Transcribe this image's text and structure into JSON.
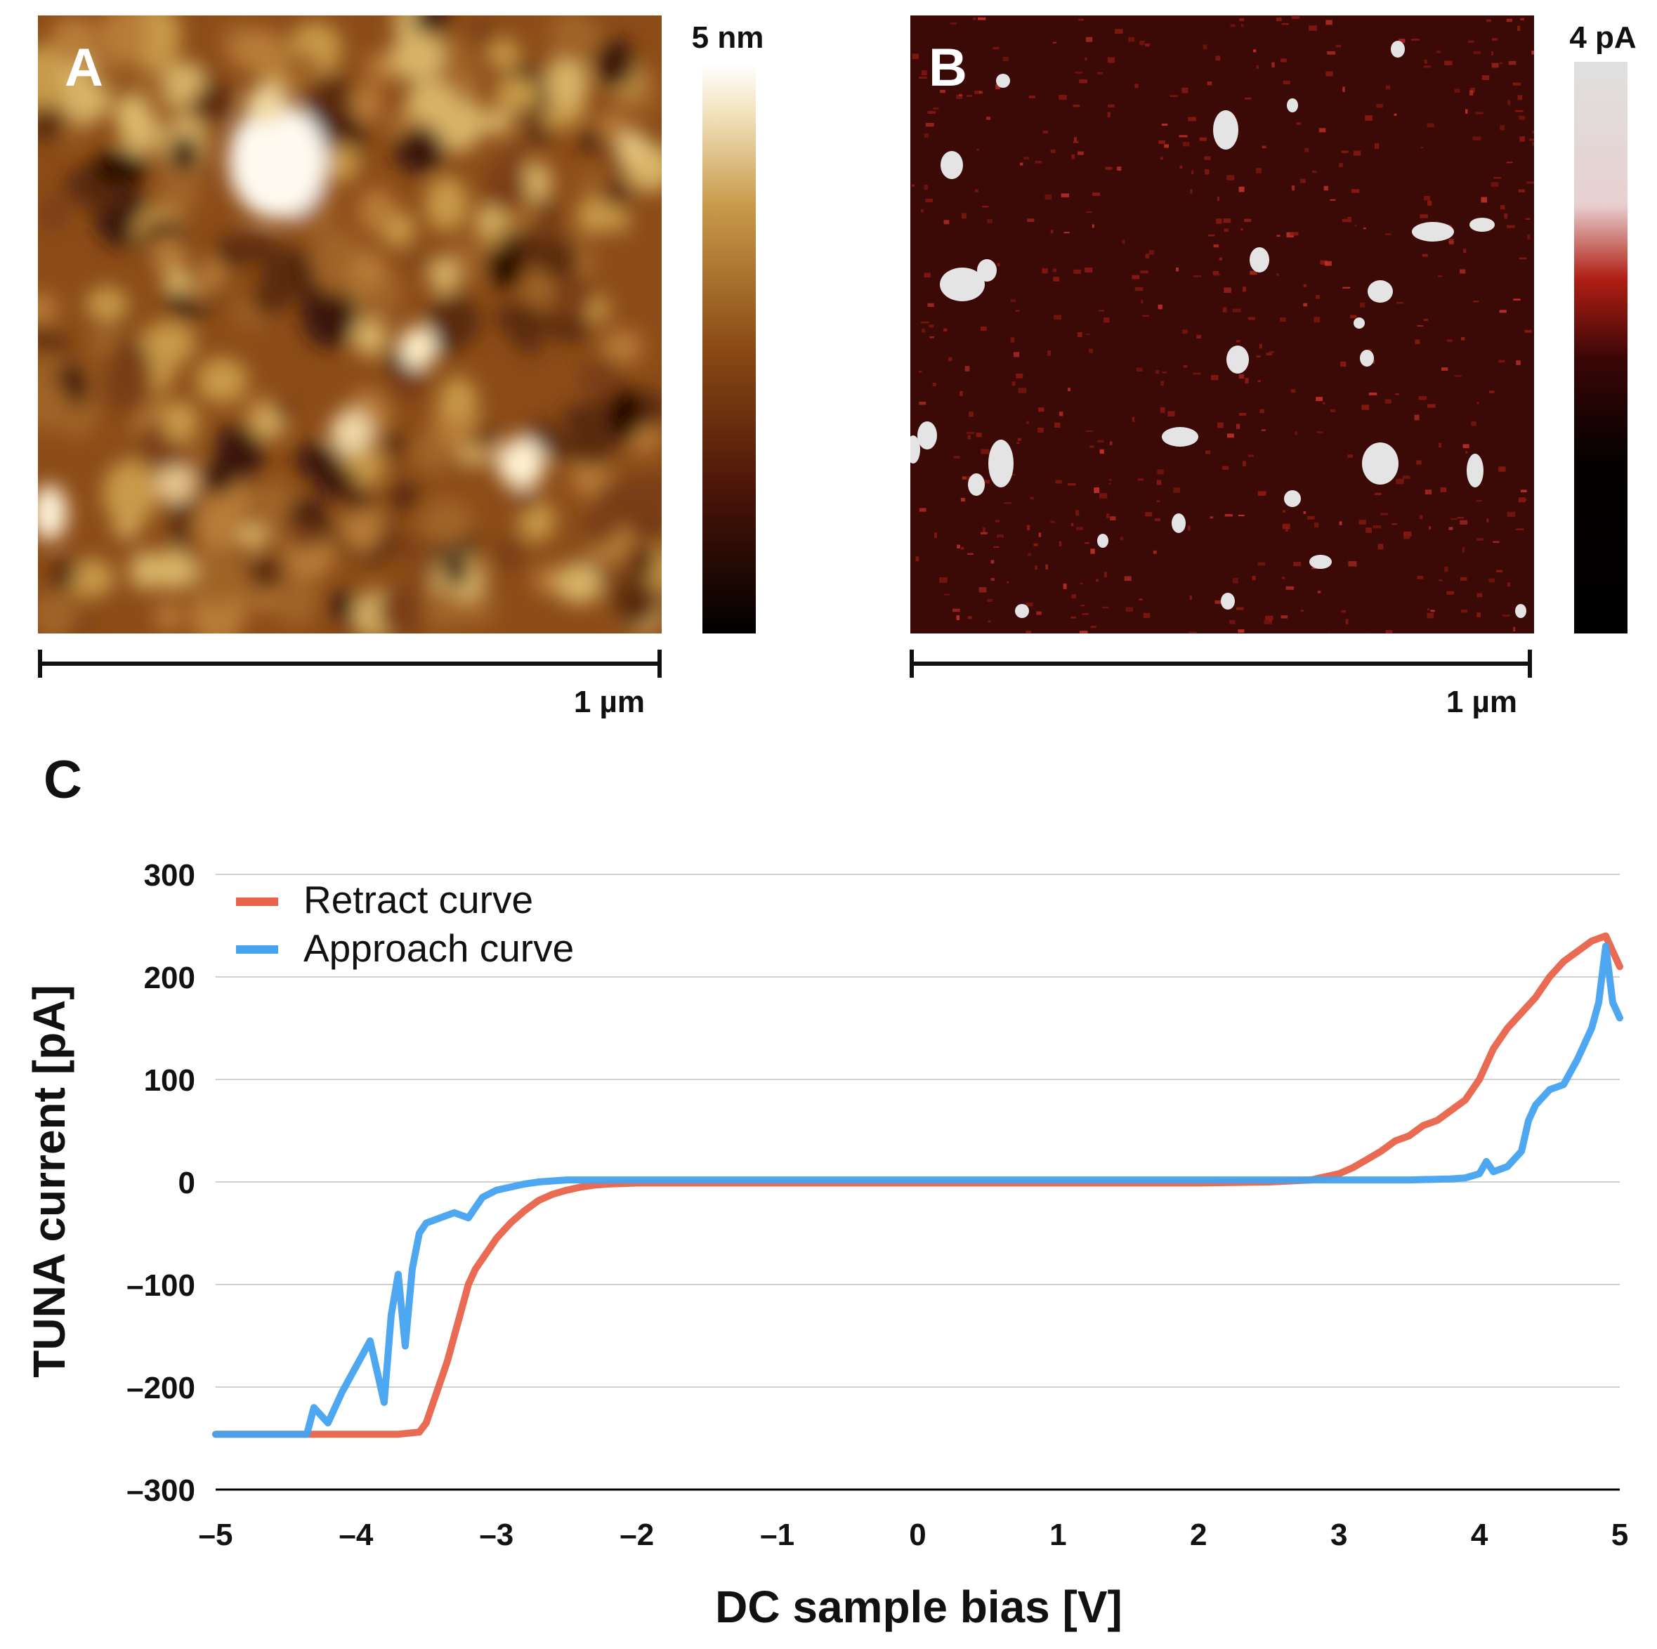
{
  "panel_a": {
    "letter": "A",
    "colorbar_label": "5 nm",
    "scalebar_label": "1 µm",
    "colormap": [
      "#000000",
      "#4a1408",
      "#8a4a14",
      "#c89a4a",
      "#f4e6c4",
      "#ffffff"
    ]
  },
  "panel_b": {
    "letter": "B",
    "colorbar_label": "4 pA",
    "scalebar_label": "1 µm",
    "colormap": [
      "#000000",
      "#2a0404",
      "#b01e14",
      "#e8d0d0",
      "#e0e0e0"
    ],
    "background": "#3b0a06"
  },
  "panel_c": {
    "letter": "C"
  },
  "chart_data": {
    "type": "line",
    "title": "",
    "xlabel": "DC sample bias [V]",
    "ylabel": "TUNA current [pA]",
    "xlim": [
      -5,
      5
    ],
    "ylim": [
      -300,
      300
    ],
    "x_ticks": [
      "–5",
      "–4",
      "–3",
      "–2",
      "–1",
      "0",
      "1",
      "2",
      "3",
      "4",
      "5"
    ],
    "y_ticks": [
      "300",
      "200",
      "100",
      "0",
      "–100",
      "–200",
      "–300"
    ],
    "grid": true,
    "legend_position": "top-left",
    "series": [
      {
        "name": "Retract curve",
        "color": "#e8634a",
        "x": [
          -5,
          -4.5,
          -4.0,
          -3.7,
          -3.55,
          -3.5,
          -3.45,
          -3.4,
          -3.35,
          -3.3,
          -3.25,
          -3.2,
          -3.15,
          -3.1,
          -3.0,
          -2.9,
          -2.8,
          -2.7,
          -2.6,
          -2.5,
          -2.4,
          -2.3,
          -2.2,
          -2.0,
          -1.5,
          -1.0,
          0,
          1.0,
          2.0,
          2.5,
          2.8,
          3.0,
          3.1,
          3.2,
          3.3,
          3.4,
          3.5,
          3.6,
          3.7,
          3.8,
          3.9,
          4.0,
          4.1,
          4.2,
          4.3,
          4.4,
          4.5,
          4.6,
          4.7,
          4.8,
          4.9,
          5.0
        ],
        "y": [
          -246,
          -246,
          -246,
          -246,
          -244,
          -235,
          -215,
          -195,
          -175,
          -150,
          -125,
          -100,
          -85,
          -75,
          -55,
          -40,
          -28,
          -18,
          -12,
          -8,
          -5,
          -3,
          -2,
          -1,
          -1,
          -1,
          -1,
          -1,
          -1,
          0,
          2,
          8,
          14,
          22,
          30,
          40,
          45,
          55,
          60,
          70,
          80,
          100,
          130,
          150,
          165,
          180,
          200,
          215,
          225,
          235,
          240,
          210
        ]
      },
      {
        "name": "Approach curve",
        "color": "#45a3f0",
        "x": [
          -5,
          -4.6,
          -4.35,
          -4.3,
          -4.2,
          -4.1,
          -4.0,
          -3.9,
          -3.8,
          -3.75,
          -3.7,
          -3.65,
          -3.6,
          -3.55,
          -3.5,
          -3.4,
          -3.3,
          -3.2,
          -3.1,
          -3.0,
          -2.9,
          -2.8,
          -2.7,
          -2.6,
          -2.5,
          -2.0,
          -1.0,
          0,
          1.0,
          2.0,
          2.5,
          3.0,
          3.5,
          3.8,
          3.9,
          4.0,
          4.05,
          4.1,
          4.2,
          4.3,
          4.35,
          4.4,
          4.5,
          4.6,
          4.7,
          4.8,
          4.85,
          4.9,
          4.95,
          5.0
        ],
        "y": [
          -246,
          -246,
          -246,
          -220,
          -235,
          -205,
          -180,
          -155,
          -215,
          -130,
          -90,
          -160,
          -85,
          -50,
          -40,
          -35,
          -30,
          -35,
          -15,
          -8,
          -5,
          -2,
          0,
          1,
          2,
          2,
          2,
          2,
          2,
          2,
          2,
          2,
          2,
          3,
          4,
          8,
          20,
          10,
          15,
          30,
          60,
          75,
          90,
          95,
          120,
          150,
          175,
          230,
          175,
          160
        ]
      }
    ]
  }
}
